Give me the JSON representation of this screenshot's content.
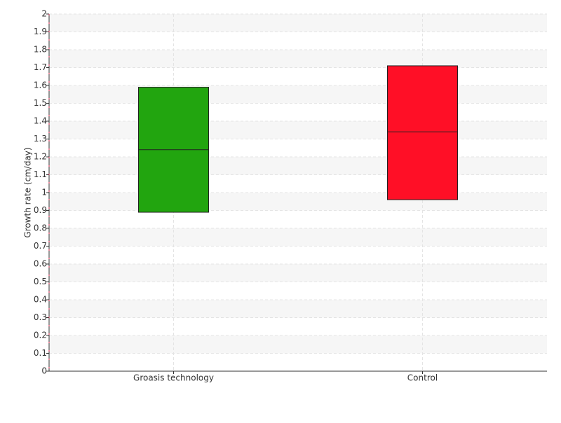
{
  "chart_data": {
    "type": "box",
    "y_label": "Growth rate (cm/day)",
    "categories": [
      "Groasis technology",
      "Control"
    ],
    "boxes": [
      {
        "low": 0.89,
        "median": 1.24,
        "high": 1.59,
        "color": "#22a50f"
      },
      {
        "low": 0.96,
        "median": 1.34,
        "high": 1.71,
        "color": "#ff0f26"
      }
    ],
    "ylim": [
      0,
      2
    ],
    "yticks": [
      0,
      0.1,
      0.2,
      0.3,
      0.4,
      0.5,
      0.6,
      0.7,
      0.8,
      0.9,
      1,
      1.1,
      1.2,
      1.3,
      1.4,
      1.5,
      1.6,
      1.7,
      1.8,
      1.9,
      2
    ],
    "grid": true
  }
}
